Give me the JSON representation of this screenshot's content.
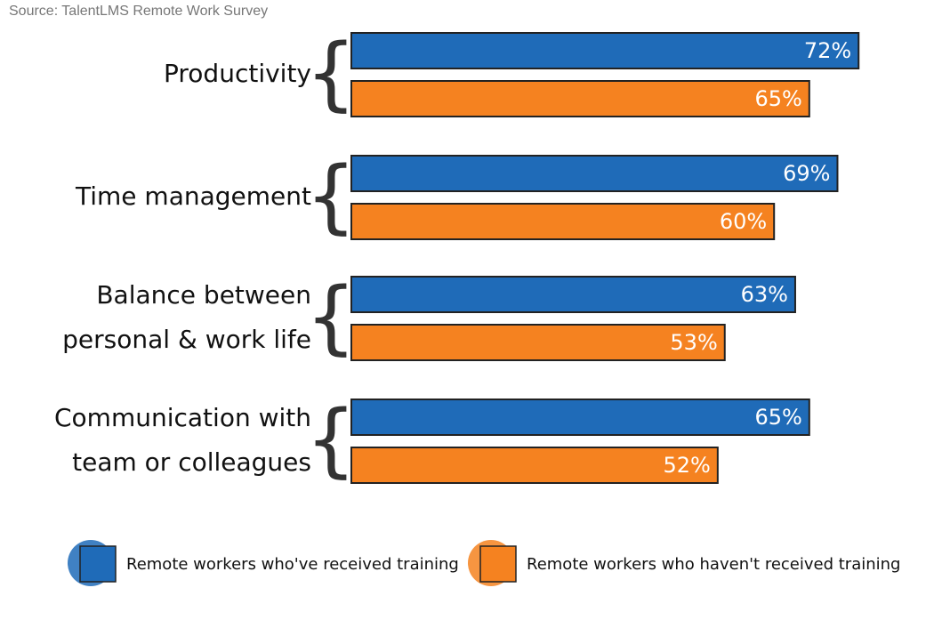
{
  "source": "Source: TalentLMS Remote Work Survey",
  "chart_data": {
    "type": "bar",
    "orientation": "horizontal",
    "categories": [
      [
        "Productivity"
      ],
      [
        "Time management"
      ],
      [
        "Balance between",
        "personal & work life"
      ],
      [
        "Communication with",
        "team or colleagues"
      ]
    ],
    "series": [
      {
        "name": "Remote workers who've received training",
        "color": "#1f6bb8",
        "values": [
          72,
          69,
          63,
          65
        ],
        "value_labels": [
          "72%",
          "69%",
          "63%",
          "65%"
        ]
      },
      {
        "name": "Remote workers who haven't received training",
        "color": "#f58220",
        "values": [
          65,
          60,
          53,
          52
        ],
        "value_labels": [
          "65%",
          "60%",
          "53%",
          "52%"
        ]
      }
    ]
  }
}
